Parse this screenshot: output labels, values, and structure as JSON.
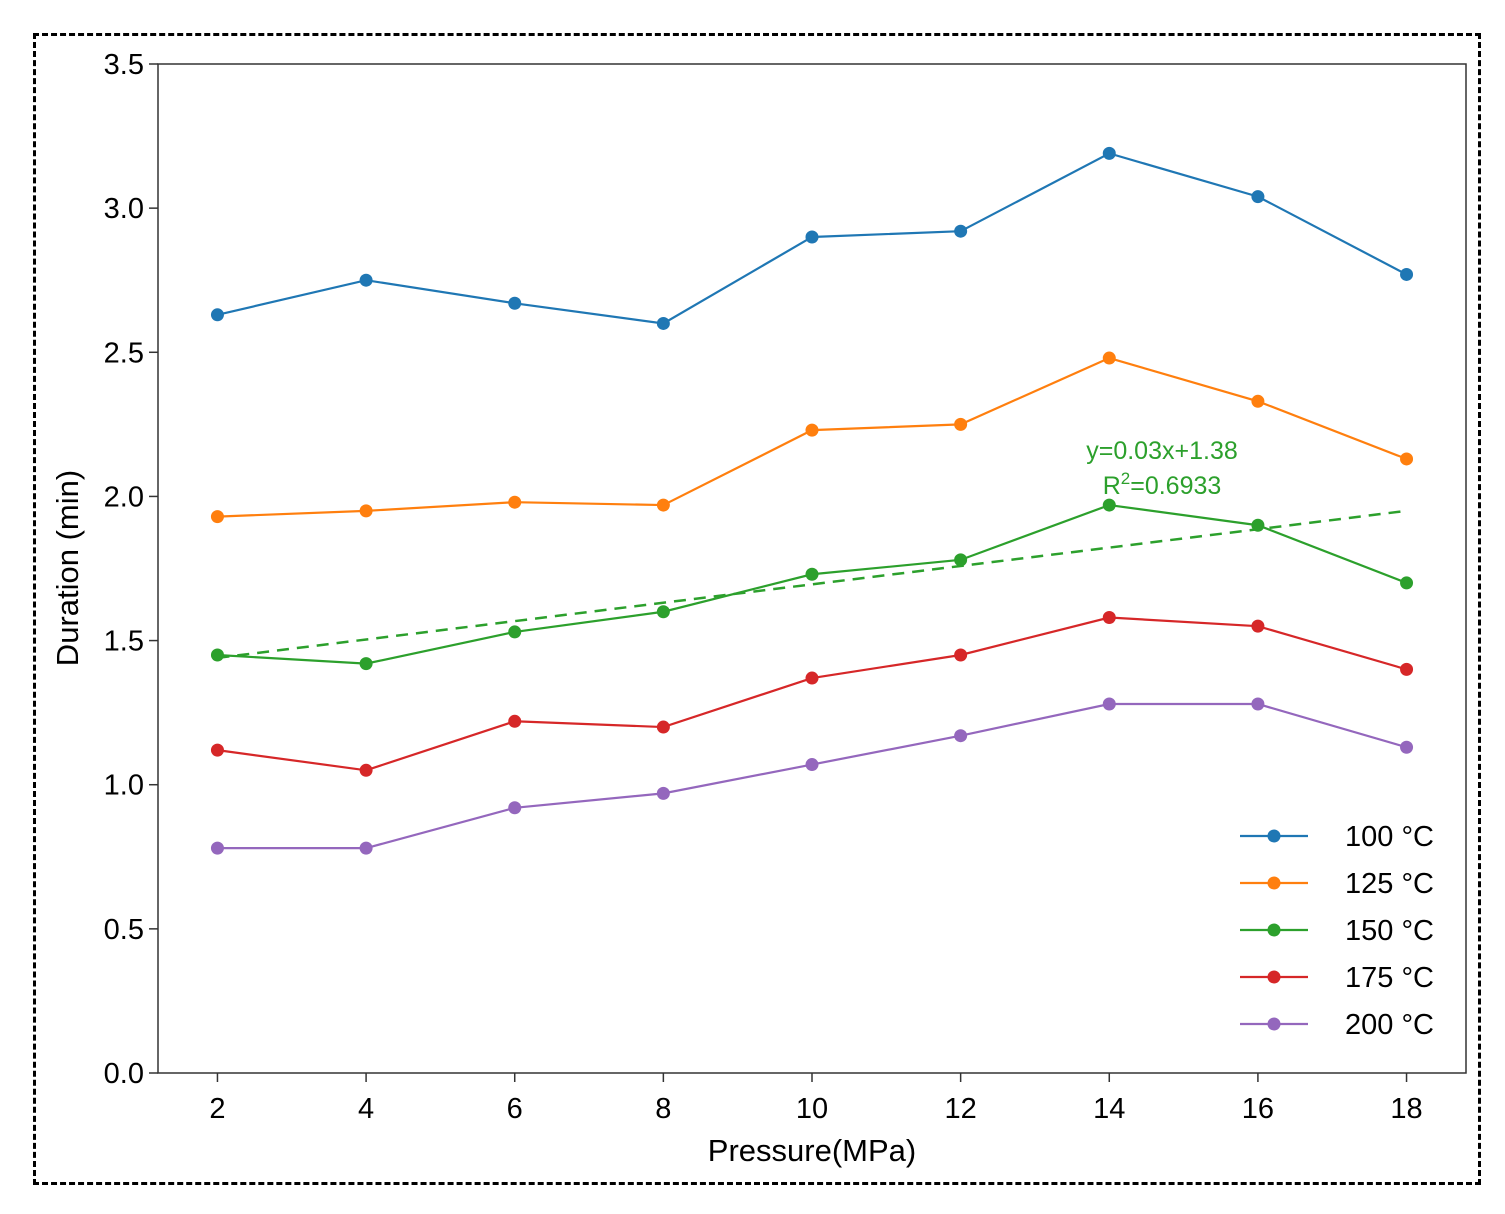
{
  "chart_data": {
    "type": "line",
    "title": "",
    "xlabel": "Pressure(MPa)",
    "ylabel": "Duration (min)",
    "xlim": [
      1.2,
      18.8
    ],
    "ylim": [
      0.0,
      3.5
    ],
    "x": [
      2,
      4,
      6,
      8,
      10,
      12,
      14,
      16,
      18
    ],
    "xticks": [
      2,
      4,
      6,
      8,
      10,
      12,
      14,
      16,
      18
    ],
    "xtick_labels": [
      "2",
      "4",
      "6",
      "8",
      "10",
      "12",
      "14",
      "16",
      "18"
    ],
    "yticks": [
      0.0,
      0.5,
      1.0,
      1.5,
      2.0,
      2.5,
      3.0,
      3.5
    ],
    "ytick_labels": [
      "0.0",
      "0.5",
      "1.0",
      "1.5",
      "2.0",
      "2.5",
      "3.0",
      "3.5"
    ],
    "grid": false,
    "legend_position": "bottom-right",
    "series": [
      {
        "name": "100 °C",
        "color": "#1f77b4",
        "values": [
          2.63,
          2.75,
          2.67,
          2.6,
          2.9,
          2.92,
          3.19,
          3.04,
          2.77
        ]
      },
      {
        "name": "125 °C",
        "color": "#ff7f0e",
        "values": [
          1.93,
          1.95,
          1.98,
          1.97,
          2.23,
          2.25,
          2.48,
          2.33,
          2.13
        ]
      },
      {
        "name": "150 °C",
        "color": "#2ca02c",
        "values": [
          1.45,
          1.42,
          1.53,
          1.6,
          1.73,
          1.78,
          1.97,
          1.9,
          1.7
        ]
      },
      {
        "name": "175 °C",
        "color": "#d62728",
        "values": [
          1.12,
          1.05,
          1.22,
          1.2,
          1.37,
          1.45,
          1.58,
          1.55,
          1.4
        ]
      },
      {
        "name": "200 °C",
        "color": "#9467bd",
        "values": [
          0.78,
          0.78,
          0.92,
          0.97,
          1.07,
          1.17,
          1.28,
          1.28,
          1.13
        ]
      }
    ],
    "fit_line": {
      "series": "150 °C",
      "slope": 0.03,
      "intercept": 1.38,
      "color": "#2ca02c",
      "x_range": [
        2,
        18
      ],
      "y_range": [
        1.44,
        1.95
      ],
      "style": "dashed"
    },
    "annotations": {
      "equation": "y=0.03x+1.38",
      "r2_prefix": "R",
      "r2_sup": "2",
      "r2_value": "=0.6933",
      "color": "#2ca02c"
    }
  }
}
